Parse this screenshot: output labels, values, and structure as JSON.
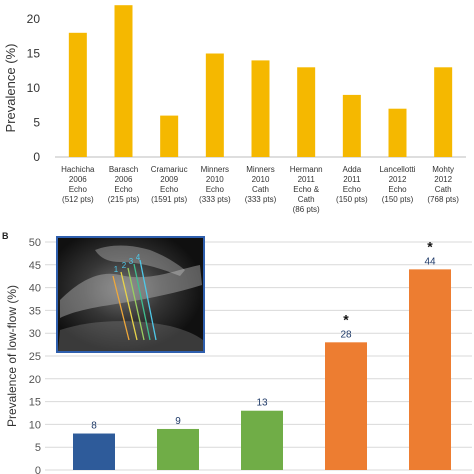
{
  "panel_b_label": "B",
  "echo_inset": {
    "markers": [
      "1",
      "2",
      "3",
      "4"
    ],
    "colors": [
      "#f0a83a",
      "#e8d44a",
      "#9ad060",
      "#3fbf90",
      "#4fc8e8"
    ]
  },
  "chart_data": [
    {
      "type": "bar",
      "title": "",
      "xlabel": "",
      "ylabel": "Prevalence (%)",
      "ylim": [
        0,
        20
      ],
      "yticks": [
        0,
        5,
        10,
        15,
        20
      ],
      "grid": false,
      "color": "#f5b800",
      "categories": [
        [
          "Hachicha",
          "2006",
          "Echo",
          "(512 pts)"
        ],
        [
          "Barasch",
          "2006",
          "Echo",
          "(215 pts)"
        ],
        [
          "Cramariuc",
          "2009",
          "Echo",
          "(1591 pts)"
        ],
        [
          "Minners",
          "2010",
          "Echo",
          "(333 pts)"
        ],
        [
          "Minners",
          "2010",
          "Cath",
          "(333 pts)"
        ],
        [
          "Hermann",
          "2011",
          "Echo &",
          "Cath",
          "(86 pts)"
        ],
        [
          "Adda",
          "2011",
          "Echo",
          "(150 pts)"
        ],
        [
          "Lancellotti",
          "2012",
          "Echo",
          "(150 pts)"
        ],
        [
          "Mohty",
          "2012",
          "Cath",
          "(768 pts)"
        ]
      ],
      "values": [
        18,
        22,
        6,
        15,
        14,
        13,
        9,
        7,
        13
      ]
    },
    {
      "type": "bar",
      "title": "",
      "xlabel": "",
      "ylabel": "Prevalence of low-flow (%)",
      "ylim": [
        0,
        50
      ],
      "yticks": [
        0,
        5,
        10,
        15,
        20,
        25,
        30,
        35,
        40,
        45,
        50
      ],
      "grid": true,
      "values": [
        8,
        9,
        13,
        28,
        44
      ],
      "data_labels": [
        "8",
        "9",
        "13",
        "28",
        "44"
      ],
      "colors": [
        "#2e5b9a",
        "#70ad47",
        "#70ad47",
        "#ed7d31",
        "#ed7d31"
      ],
      "significance": [
        "",
        "",
        "",
        "*",
        "*"
      ]
    }
  ]
}
